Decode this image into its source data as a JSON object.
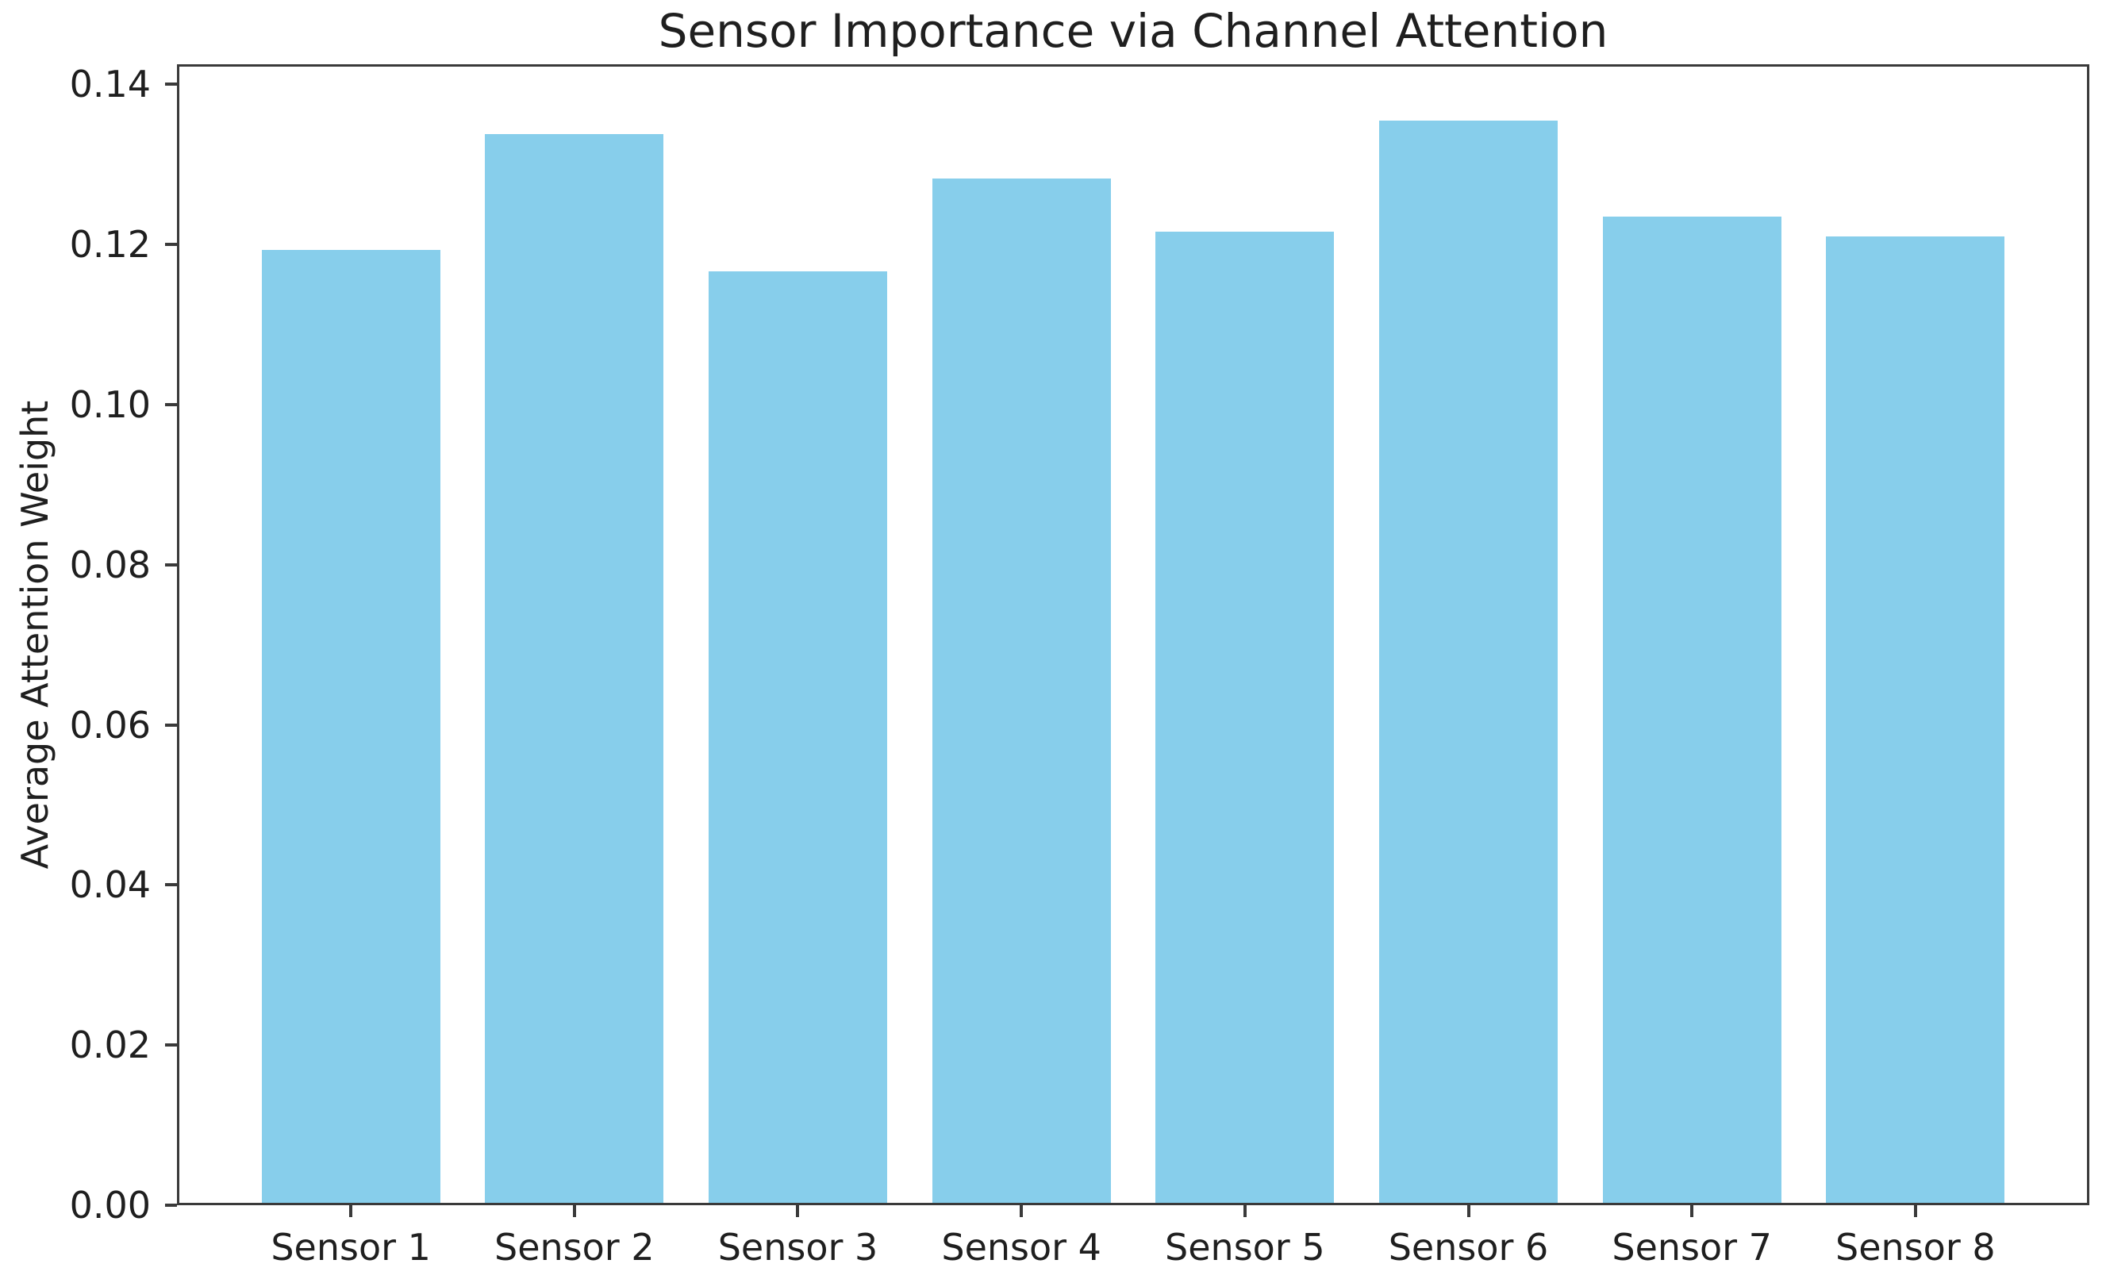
{
  "chart_data": {
    "type": "bar",
    "title": "Sensor Importance via Channel Attention",
    "xlabel": "",
    "ylabel": "Average Attention Weight",
    "categories": [
      "Sensor 1",
      "Sensor 2",
      "Sensor 3",
      "Sensor 4",
      "Sensor 5",
      "Sensor 6",
      "Sensor 7",
      "Sensor 8"
    ],
    "values": [
      0.1195,
      0.134,
      0.1168,
      0.1285,
      0.1218,
      0.1357,
      0.1237,
      0.1212
    ],
    "ylim": [
      0,
      0.1425
    ],
    "yticks": [
      0.0,
      0.02,
      0.04,
      0.06,
      0.08,
      0.1,
      0.12,
      0.14
    ],
    "ytick_labels": [
      "0.00",
      "0.02",
      "0.04",
      "0.06",
      "0.08",
      "0.10",
      "0.12",
      "0.14"
    ],
    "grid": false,
    "legend": null,
    "bar_color": "#87CEEB",
    "axis_color": "#3a3a3a",
    "text_color": "#1f1f1f",
    "background_color": "#ffffff"
  }
}
